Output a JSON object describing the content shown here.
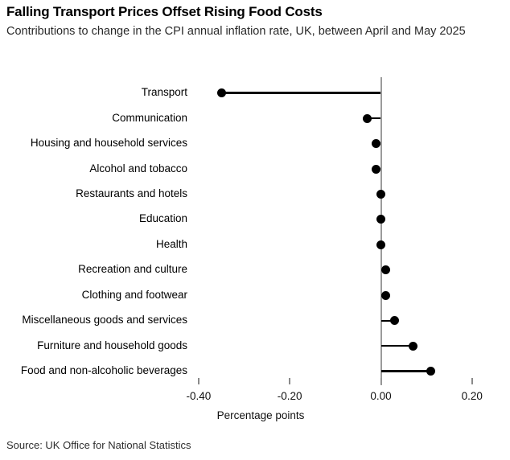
{
  "header": {
    "title": "Falling Transport Prices Offset Rising Food Costs",
    "subtitle": "Contributions to change in the CPI annual inflation rate, UK, between April and May 2025"
  },
  "chart_data": {
    "type": "bar",
    "variant": "horizontal-lollipop",
    "title": "Falling Transport Prices Offset Rising Food Costs",
    "subtitle": "Contributions to change in the CPI annual inflation rate, UK, between April and May 2025",
    "categories": [
      "Transport",
      "Communication",
      "Housing and household services",
      "Alcohol and tobacco",
      "Restaurants and hotels",
      "Education",
      "Health",
      "Recreation and culture",
      "Clothing and footwear",
      "Miscellaneous goods and services",
      "Furniture and household goods",
      "Food and non-alcoholic beverages"
    ],
    "values": [
      -0.35,
      -0.03,
      -0.01,
      -0.01,
      0.0,
      0.0,
      0.0,
      0.01,
      0.01,
      0.03,
      0.07,
      0.11
    ],
    "xlabel": "Percentage points",
    "ylabel": "",
    "xlim": [
      -0.47,
      0.28
    ],
    "x_ticks": [
      -0.4,
      -0.2,
      0.0,
      0.2
    ],
    "x_tick_labels": [
      "-0.40",
      "-0.20",
      "0.00",
      "0.20"
    ],
    "grid": false,
    "legend": "none",
    "colors": {
      "dot": "#000000",
      "stem": "#000000",
      "zero_line": "#9b9b9b",
      "tick": "#8a8a8a",
      "title_text": "#000000",
      "subtitle_text": "#2a2a2a"
    }
  },
  "footer": {
    "source": "Source: UK Office for National Statistics"
  }
}
